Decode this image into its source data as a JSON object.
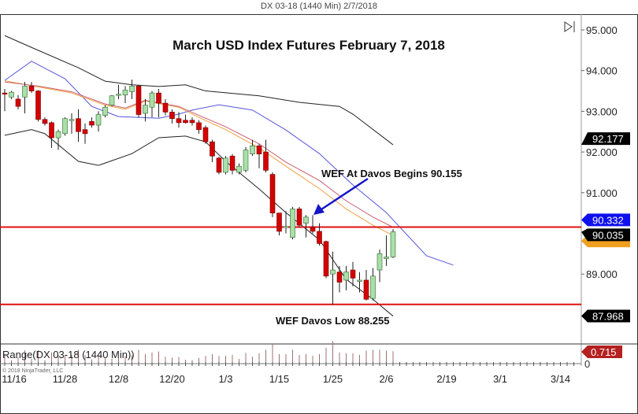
{
  "header": "DX 03-18 (1440 Min)  2/7/2018",
  "chart_data": {
    "type": "candlestick",
    "title": "March USD Index Futures February 7, 2018",
    "ylim": [
      87.6,
      95.3
    ],
    "y_ticks": [
      "95.000",
      "94.000",
      "93.000",
      "92.000",
      "91.000",
      "89.000"
    ],
    "x_ticks": [
      "11/16",
      "11/28",
      "12/8",
      "12/20",
      "1/3",
      "1/15",
      "1/25",
      "2/6",
      "2/19",
      "3/1",
      "3/14"
    ],
    "candles_columns": [
      "date",
      "open",
      "high",
      "low",
      "close"
    ],
    "candles": [
      [
        "11/15",
        93.45,
        93.55,
        93.0,
        93.42
      ],
      [
        "11/16",
        93.35,
        93.5,
        93.3,
        93.47
      ],
      [
        "11/17",
        93.3,
        93.4,
        93.05,
        93.12
      ],
      [
        "11/20",
        93.35,
        93.72,
        92.95,
        93.62
      ],
      [
        "11/21",
        93.62,
        93.72,
        93.45,
        93.5
      ],
      [
        "11/22",
        93.5,
        93.52,
        92.75,
        92.8
      ],
      [
        "11/23",
        92.8,
        92.85,
        92.65,
        92.7
      ],
      [
        "11/24",
        92.72,
        92.75,
        92.1,
        92.35
      ],
      [
        "11/27",
        92.35,
        92.55,
        92.05,
        92.5
      ],
      [
        "11/28",
        92.45,
        92.85,
        92.4,
        92.82
      ],
      [
        "11/29",
        92.78,
        92.95,
        92.45,
        92.8
      ],
      [
        "11/30",
        92.82,
        93.05,
        92.25,
        92.5
      ],
      [
        "12/1",
        92.55,
        92.7,
        92.2,
        92.45
      ],
      [
        "12/4",
        92.75,
        92.85,
        92.6,
        92.66
      ],
      [
        "12/5",
        92.66,
        93.0,
        92.5,
        92.92
      ],
      [
        "12/6",
        92.9,
        93.15,
        92.85,
        93.1
      ],
      [
        "12/7",
        93.15,
        93.4,
        93.12,
        93.38
      ],
      [
        "12/8",
        93.4,
        93.65,
        93.3,
        93.42
      ],
      [
        "12/11",
        93.4,
        93.62,
        93.2,
        93.52
      ],
      [
        "12/12",
        93.48,
        93.78,
        93.3,
        93.62
      ],
      [
        "12/13",
        93.62,
        93.65,
        92.85,
        92.92
      ],
      [
        "12/14",
        92.95,
        93.3,
        92.75,
        93.15
      ],
      [
        "12/15",
        93.1,
        93.5,
        92.85,
        93.45
      ],
      [
        "12/18",
        93.45,
        93.55,
        92.85,
        93.2
      ],
      [
        "12/19",
        93.2,
        93.3,
        92.9,
        92.98
      ],
      [
        "12/20",
        92.98,
        93.05,
        92.7,
        92.82
      ],
      [
        "12/21",
        92.82,
        92.98,
        92.6,
        92.72
      ],
      [
        "12/22",
        92.78,
        92.92,
        92.7,
        92.72
      ],
      [
        "12/26",
        92.78,
        92.85,
        92.65,
        92.72
      ],
      [
        "12/27",
        92.72,
        92.78,
        92.45,
        92.55
      ],
      [
        "12/28",
        92.6,
        92.65,
        92.2,
        92.25
      ],
      [
        "12/29",
        92.25,
        92.3,
        91.75,
        91.9
      ],
      [
        "1/2",
        91.85,
        91.88,
        91.45,
        91.5
      ],
      [
        "1/3",
        91.5,
        91.9,
        91.45,
        91.85
      ],
      [
        "1/4",
        91.9,
        91.95,
        91.45,
        91.55
      ],
      [
        "1/5",
        91.5,
        91.72,
        91.45,
        91.65
      ],
      [
        "1/8",
        91.55,
        92.12,
        91.5,
        92.05
      ],
      [
        "1/9",
        91.95,
        92.3,
        91.9,
        92.15
      ],
      [
        "1/10",
        92.15,
        92.2,
        91.6,
        91.95
      ],
      [
        "1/11",
        92.0,
        92.3,
        91.5,
        91.55
      ],
      [
        "1/12",
        91.45,
        91.5,
        90.4,
        90.5
      ],
      [
        "1/15",
        90.5,
        90.5,
        89.95,
        90.05
      ],
      [
        "1/16",
        90.15,
        90.55,
        90.0,
        90.17
      ],
      [
        "1/17",
        89.9,
        90.65,
        89.85,
        90.6
      ],
      [
        "1/18",
        90.6,
        90.65,
        90.15,
        90.2
      ],
      [
        "1/19",
        90.25,
        90.45,
        89.9,
        90.4
      ],
      [
        "1/22",
        90.15,
        90.45,
        90.0,
        90.05
      ],
      [
        "1/23",
        90.05,
        90.25,
        89.7,
        89.75
      ],
      [
        "1/24",
        89.8,
        89.82,
        88.9,
        88.95
      ],
      [
        "1/25",
        89.0,
        89.55,
        88.25,
        89.1
      ],
      [
        "1/26",
        89.05,
        89.2,
        88.55,
        88.8
      ],
      [
        "1/29",
        88.85,
        89.2,
        88.6,
        89.05
      ],
      [
        "1/30",
        89.1,
        89.3,
        88.7,
        88.9
      ],
      [
        "1/31",
        88.85,
        89.05,
        88.55,
        88.85
      ],
      [
        "2/1",
        88.85,
        89.1,
        88.35,
        88.38
      ],
      [
        "2/2",
        88.4,
        89.15,
        88.35,
        88.95
      ],
      [
        "2/5",
        89.1,
        89.6,
        88.8,
        89.5
      ],
      [
        "2/6",
        89.38,
        89.95,
        89.2,
        89.42
      ],
      [
        "2/7",
        89.42,
        90.105,
        89.39,
        90.035
      ]
    ],
    "overlays": [
      {
        "color": "#222222",
        "points": [
          [
            "11/15",
            94.86
          ],
          [
            "11/21",
            94.57
          ],
          [
            "11/30",
            94.07
          ],
          [
            "12/6",
            93.74
          ],
          [
            "12/12",
            93.65
          ],
          [
            "12/18",
            93.61
          ],
          [
            "12/22",
            93.65
          ],
          [
            "12/28",
            93.5
          ],
          [
            "1/10",
            93.38
          ],
          [
            "1/18",
            93.22
          ],
          [
            "1/26",
            93.12
          ],
          [
            "1/30",
            92.93
          ],
          [
            "2/7",
            92.177
          ]
        ]
      },
      {
        "color": "#5555dd",
        "points": [
          [
            "11/15",
            93.76
          ],
          [
            "11/21",
            94.23
          ],
          [
            "11/28",
            93.8
          ],
          [
            "12/4",
            93.12
          ],
          [
            "12/8",
            92.87
          ],
          [
            "12/18",
            92.83
          ],
          [
            "12/21",
            92.93
          ],
          [
            "12/26",
            93.03
          ],
          [
            "1/2",
            93.16
          ],
          [
            "1/9",
            93.03
          ],
          [
            "1/16",
            92.54
          ],
          [
            "1/23",
            91.96
          ],
          [
            "1/30",
            91.19
          ],
          [
            "2/6",
            90.51
          ],
          [
            "2/7",
            90.332
          ],
          [
            "2/14",
            89.45
          ],
          [
            "2/20",
            89.22
          ]
        ]
      },
      {
        "color": "#222222",
        "points": [
          [
            "11/15",
            92.41
          ],
          [
            "11/21",
            92.55
          ],
          [
            "11/23",
            92.45
          ],
          [
            "11/30",
            91.77
          ],
          [
            "12/5",
            91.67
          ],
          [
            "12/12",
            91.96
          ],
          [
            "12/18",
            92.35
          ],
          [
            "12/22",
            92.39
          ],
          [
            "12/28",
            92.25
          ],
          [
            "1/3",
            91.77
          ],
          [
            "1/10",
            91.09
          ],
          [
            "1/16",
            90.51
          ],
          [
            "1/23",
            89.84
          ],
          [
            "1/29",
            88.87
          ],
          [
            "2/2",
            88.38
          ],
          [
            "2/7",
            87.968
          ]
        ]
      },
      {
        "color": "#f0a040",
        "points": [
          [
            "11/15",
            93.75
          ],
          [
            "11/22",
            93.6
          ],
          [
            "11/29",
            93.45
          ],
          [
            "12/6",
            93.15
          ],
          [
            "12/11",
            93.05
          ],
          [
            "12/14",
            93.25
          ],
          [
            "12/21",
            93.1
          ],
          [
            "12/27",
            92.85
          ],
          [
            "1/3",
            92.55
          ],
          [
            "1/10",
            92.1
          ],
          [
            "1/16",
            91.65
          ],
          [
            "1/23",
            91.1
          ],
          [
            "1/29",
            90.6
          ],
          [
            "2/2",
            90.2
          ],
          [
            "2/7",
            89.95
          ]
        ]
      },
      {
        "color": "#c86070",
        "points": [
          [
            "11/15",
            93.72
          ],
          [
            "11/22",
            93.62
          ],
          [
            "11/29",
            93.48
          ],
          [
            "12/6",
            93.18
          ],
          [
            "12/11",
            93.08
          ],
          [
            "12/14",
            93.27
          ],
          [
            "12/21",
            93.12
          ],
          [
            "12/27",
            92.9
          ],
          [
            "1/3",
            92.62
          ],
          [
            "1/10",
            92.2
          ],
          [
            "1/16",
            91.75
          ],
          [
            "1/23",
            91.3
          ],
          [
            "1/29",
            90.8
          ],
          [
            "2/2",
            90.4
          ],
          [
            "2/7",
            90.15
          ]
        ]
      }
    ],
    "horizontal_lines": [
      {
        "value": 90.155,
        "color": "#dd1111"
      },
      {
        "value": 88.255,
        "color": "#dd1111"
      }
    ],
    "annotations": [
      {
        "text": "WEF At Davos Begins 90.155",
        "arrow_to": "1/22"
      },
      {
        "text": "WEF Davos Low 88.255"
      }
    ],
    "price_markers": [
      {
        "text": "92.177",
        "bg": "#000000"
      },
      {
        "text": "90.332",
        "bg": "#1010ee"
      },
      {
        "text": "90.035",
        "bg": "#000000"
      },
      {
        "text": "87.968",
        "bg": "#000000"
      }
    ],
    "indicator": {
      "label": "Range(DX 03-18 (1440 Min))",
      "last_value": "0.715",
      "marker_bg": "#b52020",
      "zero_label": "0",
      "bar_color": "#a07070"
    },
    "copyright": "© 2018 NinjaTrader, LLC",
    "colors": {
      "up": "#a8e0a8",
      "down": "#d40000"
    }
  }
}
